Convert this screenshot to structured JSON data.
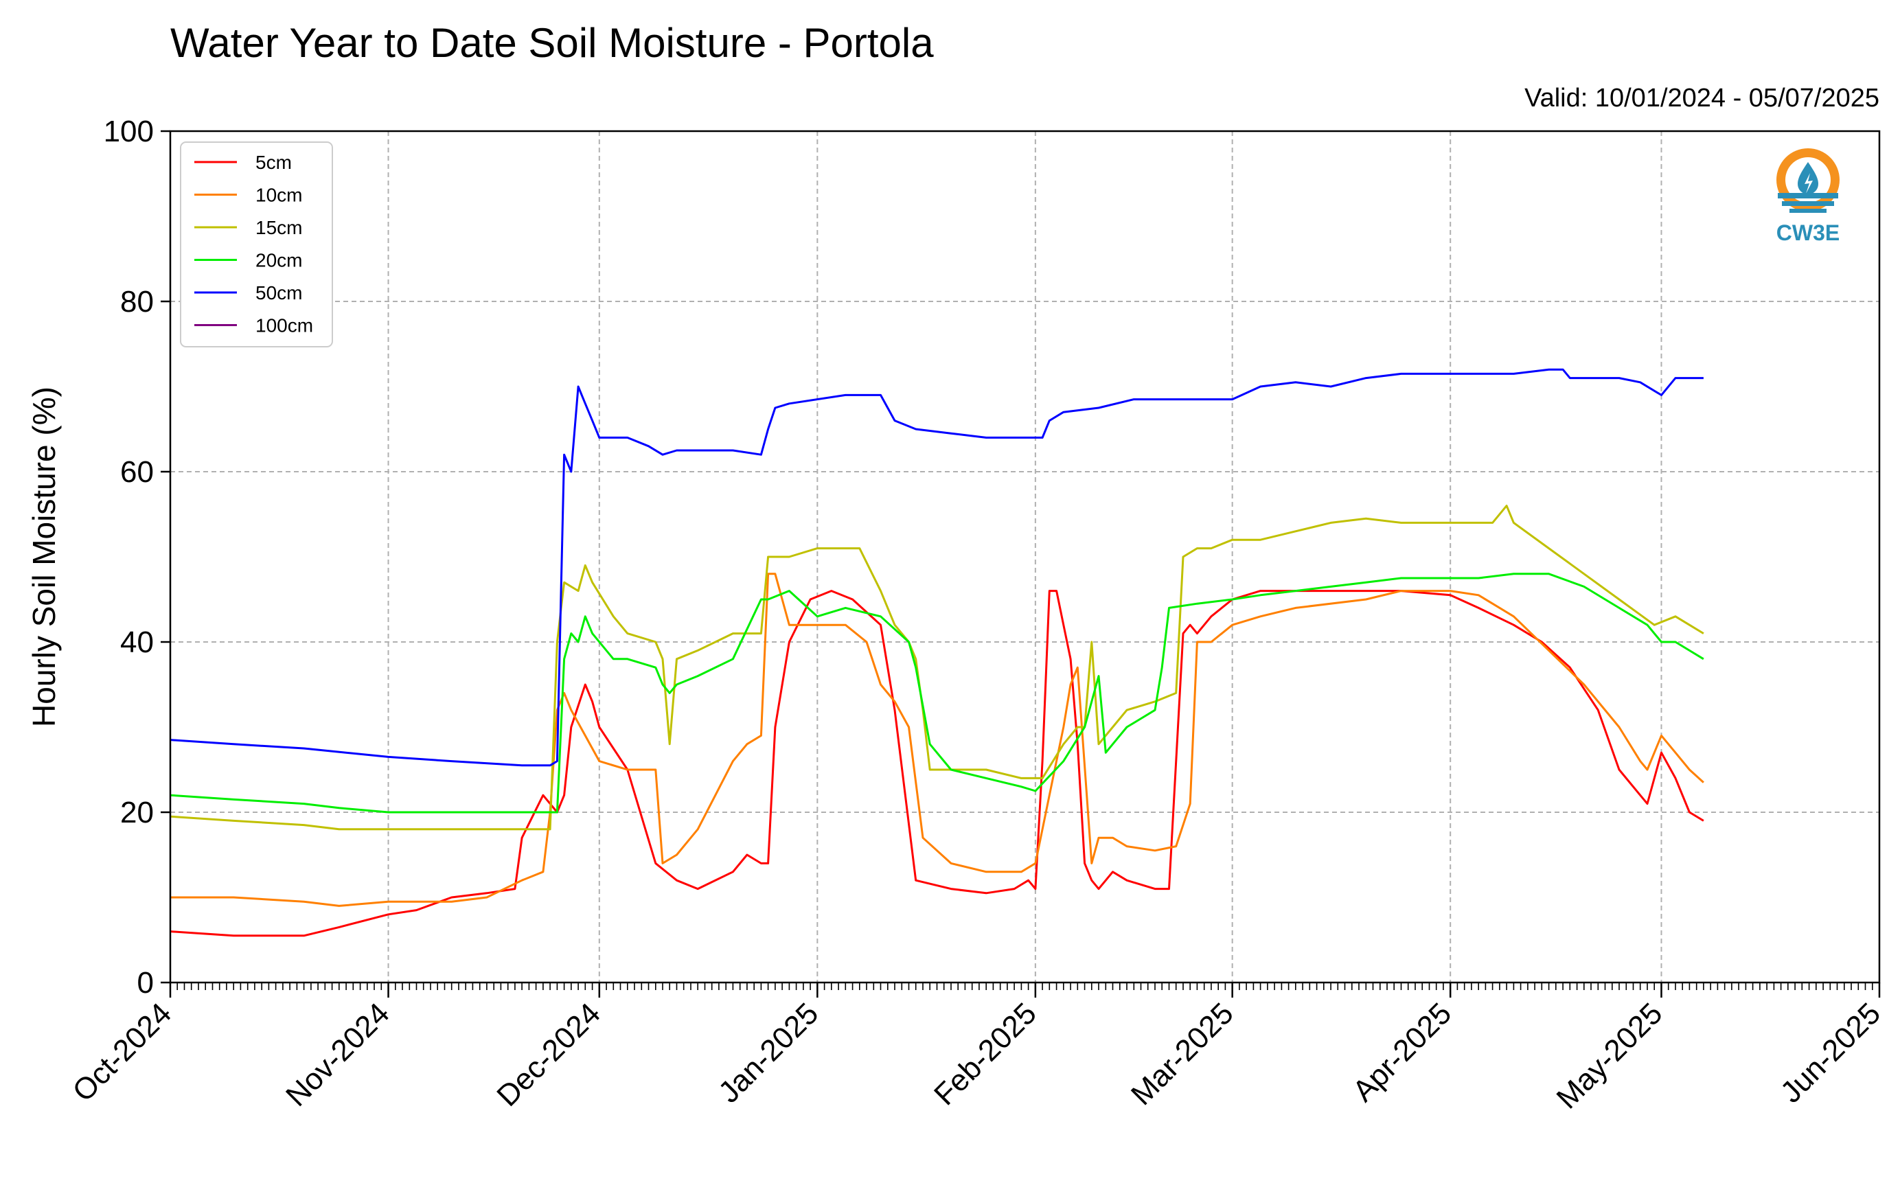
{
  "header": {
    "title": "Water Year to Date Soil Moisture - Portola",
    "valid": "Valid: 10/01/2024 - 05/07/2025"
  },
  "logo": {
    "text": "CW3E",
    "icon": "water-drop-logo-icon",
    "colors": {
      "ring": "#f5921e",
      "waves": "#2a8fb8"
    }
  },
  "chart_data": {
    "type": "line",
    "ylabel": "Hourly Soil Moisture (%)",
    "xlabel": "",
    "ylim": [
      0,
      100
    ],
    "yticks": [
      0,
      20,
      40,
      60,
      80,
      100
    ],
    "xlim": [
      "2024-10-01",
      "2025-06-01"
    ],
    "xticks": [
      "2024-10-01",
      "2024-11-01",
      "2024-12-01",
      "2025-01-01",
      "2025-02-01",
      "2025-03-01",
      "2025-04-01",
      "2025-05-01",
      "2025-06-01"
    ],
    "xticklabels": [
      "Oct-2024",
      "Nov-2024",
      "Dec-2024",
      "Jan-2025",
      "Feb-2025",
      "Mar-2025",
      "Apr-2025",
      "May-2025",
      "Jun-2025"
    ],
    "grid": true,
    "legend": "top-left",
    "series": [
      {
        "name": "5cm",
        "color": "#ff0000",
        "x": [
          "2024-10-01",
          "2024-10-10",
          "2024-10-20",
          "2024-10-25",
          "2024-11-01",
          "2024-11-05",
          "2024-11-10",
          "2024-11-15",
          "2024-11-19",
          "2024-11-20",
          "2024-11-23",
          "2024-11-24",
          "2024-11-25",
          "2024-11-26",
          "2024-11-27",
          "2024-11-29",
          "2024-11-30",
          "2024-12-01",
          "2024-12-05",
          "2024-12-09",
          "2024-12-12",
          "2024-12-15",
          "2024-12-20",
          "2024-12-22",
          "2024-12-24",
          "2024-12-25",
          "2024-12-26",
          "2024-12-28",
          "2024-12-31",
          "2025-01-03",
          "2025-01-06",
          "2025-01-10",
          "2025-01-12",
          "2025-01-15",
          "2025-01-20",
          "2025-01-25",
          "2025-01-29",
          "2025-01-31",
          "2025-02-01",
          "2025-02-02",
          "2025-02-03",
          "2025-02-04",
          "2025-02-05",
          "2025-02-06",
          "2025-02-07",
          "2025-02-08",
          "2025-02-09",
          "2025-02-10",
          "2025-02-11",
          "2025-02-12",
          "2025-02-14",
          "2025-02-18",
          "2025-02-20",
          "2025-02-22",
          "2025-02-23",
          "2025-02-24",
          "2025-02-26",
          "2025-03-01",
          "2025-03-05",
          "2025-03-10",
          "2025-03-15",
          "2025-03-20",
          "2025-03-25",
          "2025-04-01",
          "2025-04-05",
          "2025-04-10",
          "2025-04-14",
          "2025-04-18",
          "2025-04-22",
          "2025-04-25",
          "2025-04-28",
          "2025-04-29",
          "2025-05-01",
          "2025-05-03",
          "2025-05-05",
          "2025-05-07"
        ],
        "values": [
          6,
          5.5,
          5.5,
          6.5,
          8,
          8.5,
          10,
          10.5,
          11,
          17,
          22,
          21,
          20,
          22,
          30,
          35,
          33,
          30,
          25,
          14,
          12,
          11,
          13,
          15,
          14,
          14,
          30,
          40,
          45,
          46,
          45,
          42,
          32,
          12,
          11,
          10.5,
          11,
          12,
          11,
          26,
          46,
          46,
          42,
          38,
          28,
          14,
          12,
          11,
          12,
          13,
          12,
          11,
          11,
          41,
          42,
          41,
          43,
          45,
          46,
          46,
          46,
          46,
          46,
          45.5,
          44,
          42,
          40,
          37,
          32,
          25,
          22,
          21,
          27,
          24,
          20,
          19
        ]
      },
      {
        "name": "10cm",
        "color": "#ff8000",
        "x": [
          "2024-10-01",
          "2024-10-10",
          "2024-10-20",
          "2024-10-25",
          "2024-11-01",
          "2024-11-10",
          "2024-11-15",
          "2024-11-20",
          "2024-11-23",
          "2024-11-24",
          "2024-11-25",
          "2024-11-26",
          "2024-11-27",
          "2024-11-29",
          "2024-12-01",
          "2024-12-05",
          "2024-12-09",
          "2024-12-10",
          "2024-12-12",
          "2024-12-15",
          "2024-12-20",
          "2024-12-22",
          "2024-12-24",
          "2024-12-25",
          "2024-12-26",
          "2024-12-28",
          "2024-12-31",
          "2025-01-05",
          "2025-01-08",
          "2025-01-10",
          "2025-01-12",
          "2025-01-14",
          "2025-01-16",
          "2025-01-20",
          "2025-01-25",
          "2025-01-30",
          "2025-02-01",
          "2025-02-03",
          "2025-02-05",
          "2025-02-06",
          "2025-02-07",
          "2025-02-09",
          "2025-02-10",
          "2025-02-12",
          "2025-02-14",
          "2025-02-18",
          "2025-02-21",
          "2025-02-23",
          "2025-02-24",
          "2025-02-26",
          "2025-03-01",
          "2025-03-05",
          "2025-03-10",
          "2025-03-20",
          "2025-03-25",
          "2025-04-01",
          "2025-04-05",
          "2025-04-10",
          "2025-04-15",
          "2025-04-20",
          "2025-04-25",
          "2025-04-28",
          "2025-04-29",
          "2025-05-01",
          "2025-05-03",
          "2025-05-05",
          "2025-05-07"
        ],
        "values": [
          10,
          10,
          9.5,
          9,
          9.5,
          9.5,
          10,
          12,
          13,
          20,
          32,
          34,
          32,
          29,
          26,
          25,
          25,
          14,
          15,
          18,
          26,
          28,
          29,
          48,
          48,
          42,
          42,
          42,
          40,
          35,
          33,
          30,
          17,
          14,
          13,
          13,
          14,
          22,
          30,
          35,
          37,
          14,
          17,
          17,
          16,
          15.5,
          16,
          21,
          40,
          40,
          42,
          43,
          44,
          45,
          46,
          46,
          45.5,
          43,
          39,
          35,
          30,
          26,
          25,
          29,
          27,
          25,
          23.5
        ]
      },
      {
        "name": "15cm",
        "color": "#c0c000",
        "x": [
          "2024-10-01",
          "2024-10-10",
          "2024-10-20",
          "2024-10-25",
          "2024-11-01",
          "2024-11-10",
          "2024-11-15",
          "2024-11-20",
          "2024-11-24",
          "2024-11-25",
          "2024-11-26",
          "2024-11-28",
          "2024-11-29",
          "2024-11-30",
          "2024-12-03",
          "2024-12-05",
          "2024-12-09",
          "2024-12-10",
          "2024-12-11",
          "2024-12-12",
          "2024-12-15",
          "2024-12-20",
          "2024-12-24",
          "2024-12-25",
          "2024-12-28",
          "2025-01-01",
          "2025-01-05",
          "2025-01-07",
          "2025-01-10",
          "2025-01-12",
          "2025-01-14",
          "2025-01-15",
          "2025-01-16",
          "2025-01-17",
          "2025-01-20",
          "2025-01-25",
          "2025-01-30",
          "2025-02-02",
          "2025-02-05",
          "2025-02-07",
          "2025-02-08",
          "2025-02-09",
          "2025-02-10",
          "2025-02-12",
          "2025-02-14",
          "2025-02-18",
          "2025-02-21",
          "2025-02-22",
          "2025-02-24",
          "2025-02-26",
          "2025-03-01",
          "2025-03-05",
          "2025-03-10",
          "2025-03-15",
          "2025-03-20",
          "2025-03-25",
          "2025-04-01",
          "2025-04-05",
          "2025-04-07",
          "2025-04-09",
          "2025-04-10",
          "2025-04-15",
          "2025-04-20",
          "2025-04-25",
          "2025-04-30",
          "2025-05-03",
          "2025-05-05",
          "2025-05-07"
        ],
        "values": [
          19.5,
          19,
          18.5,
          18,
          18,
          18,
          18,
          18,
          18,
          40,
          47,
          46,
          49,
          47,
          43,
          41,
          40,
          38,
          28,
          38,
          39,
          41,
          41,
          50,
          50,
          51,
          51,
          51,
          46,
          42,
          40,
          38,
          32,
          25,
          25,
          25,
          24,
          24,
          28,
          30,
          30,
          40,
          28,
          30,
          32,
          33,
          34,
          50,
          51,
          51,
          52,
          52,
          53,
          54,
          54.5,
          54,
          54,
          54,
          54,
          56,
          54,
          51,
          48,
          45,
          42,
          43,
          42,
          41
        ]
      },
      {
        "name": "20cm",
        "color": "#00ee00",
        "x": [
          "2024-10-01",
          "2024-10-10",
          "2024-10-20",
          "2024-10-25",
          "2024-11-01",
          "2024-11-10",
          "2024-11-15",
          "2024-11-20",
          "2024-11-24",
          "2024-11-25",
          "2024-11-26",
          "2024-11-27",
          "2024-11-28",
          "2024-11-29",
          "2024-11-30",
          "2024-12-03",
          "2024-12-05",
          "2024-12-09",
          "2024-12-10",
          "2024-12-11",
          "2024-12-12",
          "2024-12-15",
          "2024-12-20",
          "2024-12-24",
          "2024-12-25",
          "2024-12-28",
          "2025-01-01",
          "2025-01-05",
          "2025-01-10",
          "2025-01-14",
          "2025-01-15",
          "2025-01-17",
          "2025-01-20",
          "2025-01-25",
          "2025-01-30",
          "2025-02-01",
          "2025-02-05",
          "2025-02-08",
          "2025-02-10",
          "2025-02-11",
          "2025-02-12",
          "2025-02-14",
          "2025-02-16",
          "2025-02-18",
          "2025-02-19",
          "2025-02-20",
          "2025-02-24",
          "2025-03-01",
          "2025-03-05",
          "2025-03-10",
          "2025-03-15",
          "2025-03-20",
          "2025-03-25",
          "2025-04-01",
          "2025-04-05",
          "2025-04-10",
          "2025-04-15",
          "2025-04-20",
          "2025-04-25",
          "2025-04-29",
          "2025-05-01",
          "2025-05-03",
          "2025-05-05",
          "2025-05-07"
        ],
        "values": [
          22,
          21.5,
          21,
          20.5,
          20,
          20,
          20,
          20,
          20,
          20,
          38,
          41,
          40,
          43,
          41,
          38,
          38,
          37,
          35,
          34,
          35,
          36,
          38,
          45,
          45,
          46,
          43,
          44,
          43,
          40,
          37,
          28,
          25,
          24,
          23,
          22.5,
          26,
          30,
          36,
          27,
          28,
          30,
          31,
          32,
          37,
          44,
          44.5,
          45,
          45.5,
          46,
          46.5,
          47,
          47.5,
          47.5,
          47.5,
          48,
          48,
          46.5,
          44,
          42,
          40,
          40,
          39,
          38
        ]
      },
      {
        "name": "50cm",
        "color": "#0000ff",
        "x": [
          "2024-10-01",
          "2024-10-10",
          "2024-10-20",
          "2024-11-01",
          "2024-11-10",
          "2024-11-20",
          "2024-11-24",
          "2024-11-25",
          "2024-11-26",
          "2024-11-27",
          "2024-11-28",
          "2024-11-29",
          "2024-11-30",
          "2024-12-01",
          "2024-12-05",
          "2024-12-08",
          "2024-12-10",
          "2024-12-12",
          "2024-12-15",
          "2024-12-20",
          "2024-12-24",
          "2024-12-25",
          "2024-12-26",
          "2024-12-28",
          "2025-01-05",
          "2025-01-10",
          "2025-01-12",
          "2025-01-15",
          "2025-01-20",
          "2025-01-25",
          "2025-01-30",
          "2025-02-02",
          "2025-02-03",
          "2025-02-05",
          "2025-02-10",
          "2025-02-15",
          "2025-02-20",
          "2025-02-25",
          "2025-03-01",
          "2025-03-05",
          "2025-03-10",
          "2025-03-15",
          "2025-03-20",
          "2025-03-25",
          "2025-04-01",
          "2025-04-05",
          "2025-04-10",
          "2025-04-15",
          "2025-04-17",
          "2025-04-18",
          "2025-04-25",
          "2025-04-28",
          "2025-05-01",
          "2025-05-03",
          "2025-05-05",
          "2025-05-07"
        ],
        "values": [
          28.5,
          28,
          27.5,
          26.5,
          26,
          25.5,
          25.5,
          26,
          62,
          60,
          70,
          68,
          66,
          64,
          64,
          63,
          62,
          62.5,
          62.5,
          62.5,
          62,
          65,
          67.5,
          68,
          69,
          69,
          66,
          65,
          64.5,
          64,
          64,
          64,
          66,
          67,
          67.5,
          68.5,
          68.5,
          68.5,
          68.5,
          70,
          70.5,
          70,
          71,
          71.5,
          71.5,
          71.5,
          71.5,
          72,
          72,
          71,
          71,
          70.5,
          69,
          71,
          71,
          71
        ]
      },
      {
        "name": "100cm",
        "color": "#800080",
        "x": [],
        "values": []
      }
    ]
  }
}
